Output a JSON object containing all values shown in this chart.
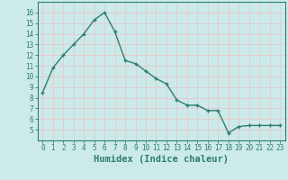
{
  "x": [
    0,
    1,
    2,
    3,
    4,
    5,
    6,
    7,
    8,
    9,
    10,
    11,
    12,
    13,
    14,
    15,
    16,
    17,
    18,
    19,
    20,
    21,
    22,
    23
  ],
  "y": [
    8.5,
    10.8,
    12.0,
    13.0,
    14.0,
    15.3,
    16.0,
    14.2,
    11.5,
    11.2,
    10.5,
    9.8,
    9.3,
    7.8,
    7.3,
    7.3,
    6.8,
    6.8,
    4.7,
    5.3,
    5.4,
    5.4,
    5.4,
    5.4
  ],
  "xlim": [
    -0.5,
    23.5
  ],
  "ylim": [
    4,
    17
  ],
  "yticks": [
    5,
    6,
    7,
    8,
    9,
    10,
    11,
    12,
    13,
    14,
    15,
    16
  ],
  "xticks": [
    0,
    1,
    2,
    3,
    4,
    5,
    6,
    7,
    8,
    9,
    10,
    11,
    12,
    13,
    14,
    15,
    16,
    17,
    18,
    19,
    20,
    21,
    22,
    23
  ],
  "xlabel": "Humidex (Indice chaleur)",
  "line_color": "#2e7d6e",
  "marker": "+",
  "bg_color": "#cceaea",
  "grid_color": "#e8c8c8",
  "tick_label_color": "#2e7d6e",
  "axis_label_color": "#2e7d6e",
  "tick_fontsize": 5.5,
  "xlabel_fontsize": 7.5
}
